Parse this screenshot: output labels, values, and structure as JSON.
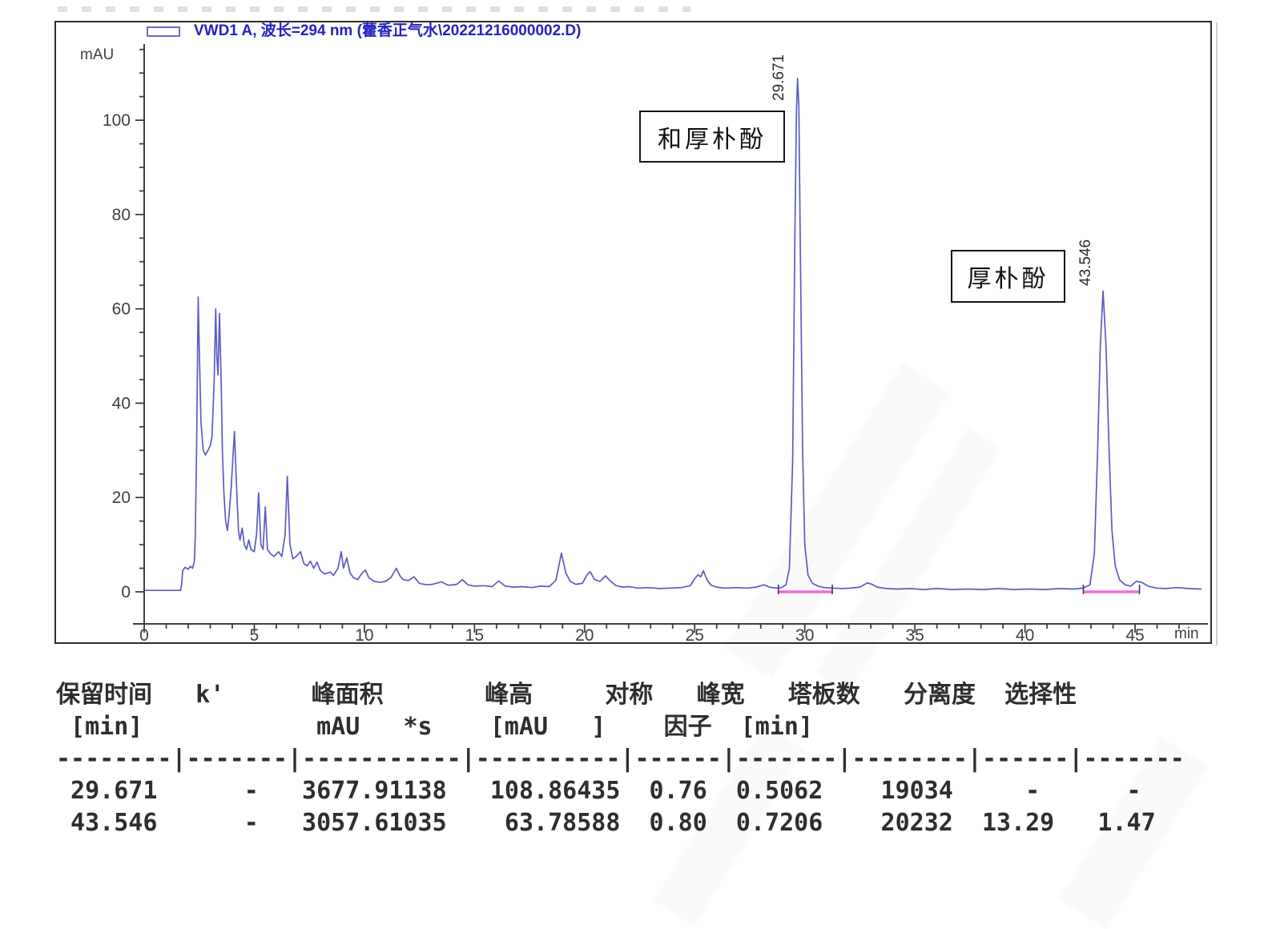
{
  "legend": {
    "label": "VWD1 A, 波长=294 nm (藿香正气水\\20221216000002.D)"
  },
  "annotations": {
    "peak1_rt": "29.671",
    "peak2_rt": "43.546",
    "peak1_box": "和厚朴酚",
    "peak2_box": "厚朴酚"
  },
  "chart_data": {
    "type": "line",
    "title": "VWD1 A, 波长=294 nm (藿香正气水\\20221216000002.D)",
    "xlabel": "min",
    "ylabel": "mAU",
    "xlim": [
      0,
      48.2
    ],
    "ylim": [
      -2,
      116
    ],
    "grid": false,
    "legend_position": "top-left",
    "x_ticks": [
      0,
      5,
      10,
      15,
      20,
      25,
      30,
      35,
      40,
      45
    ],
    "x_minor_step": 1,
    "y_ticks": [
      0,
      20,
      40,
      60,
      80,
      100
    ],
    "y_minor_step": 5,
    "integration_color": "#ec6fd8",
    "integration_regions": [
      {
        "start": 28.8,
        "end": 31.25
      },
      {
        "start": 42.65,
        "end": 45.2
      }
    ],
    "peaks": [
      {
        "rt": 29.671,
        "compound": "和厚朴酚",
        "k": "-",
        "area_mau_s": 3677.91138,
        "height_mau": 108.86435,
        "symmetry": 0.76,
        "width_min": 0.5062,
        "plates": 19034,
        "resolution": "-",
        "selectivity": "-"
      },
      {
        "rt": 43.546,
        "compound": "厚朴酚",
        "k": "-",
        "area_mau_s": 3057.61035,
        "height_mau": 63.78588,
        "symmetry": 0.8,
        "width_min": 0.7206,
        "plates": 20232,
        "resolution": 13.29,
        "selectivity": 1.47
      }
    ],
    "series": [
      {
        "name": "VWD1 A",
        "color": "#5b5bc4",
        "points": [
          [
            0,
            0.3
          ],
          [
            1.65,
            0.3
          ],
          [
            1.7,
            1.5
          ],
          [
            1.75,
            4.5
          ],
          [
            1.85,
            5.2
          ],
          [
            2.0,
            4.8
          ],
          [
            2.1,
            5.4
          ],
          [
            2.2,
            5.0
          ],
          [
            2.28,
            6.5
          ],
          [
            2.32,
            12
          ],
          [
            2.38,
            30
          ],
          [
            2.45,
            62.5
          ],
          [
            2.5,
            52
          ],
          [
            2.58,
            36
          ],
          [
            2.68,
            30
          ],
          [
            2.78,
            29
          ],
          [
            2.9,
            30
          ],
          [
            3.0,
            31
          ],
          [
            3.08,
            33
          ],
          [
            3.18,
            45
          ],
          [
            3.25,
            60
          ],
          [
            3.3,
            50
          ],
          [
            3.35,
            46
          ],
          [
            3.42,
            59
          ],
          [
            3.5,
            44
          ],
          [
            3.55,
            30
          ],
          [
            3.62,
            21
          ],
          [
            3.7,
            15
          ],
          [
            3.78,
            13
          ],
          [
            3.85,
            16
          ],
          [
            3.95,
            22
          ],
          [
            4.05,
            30
          ],
          [
            4.1,
            34
          ],
          [
            4.18,
            24
          ],
          [
            4.28,
            13
          ],
          [
            4.35,
            11
          ],
          [
            4.45,
            13.5
          ],
          [
            4.55,
            10
          ],
          [
            4.65,
            9
          ],
          [
            4.75,
            11
          ],
          [
            4.85,
            9
          ],
          [
            5.0,
            8.5
          ],
          [
            5.1,
            12
          ],
          [
            5.2,
            21
          ],
          [
            5.3,
            10
          ],
          [
            5.4,
            9
          ],
          [
            5.5,
            18
          ],
          [
            5.6,
            9
          ],
          [
            5.75,
            8
          ],
          [
            5.9,
            7.5
          ],
          [
            6.1,
            8.5
          ],
          [
            6.25,
            7.5
          ],
          [
            6.4,
            12
          ],
          [
            6.5,
            24.5
          ],
          [
            6.62,
            10
          ],
          [
            6.75,
            7
          ],
          [
            6.9,
            7.5
          ],
          [
            7.1,
            8.5
          ],
          [
            7.25,
            6
          ],
          [
            7.4,
            5.5
          ],
          [
            7.55,
            6.5
          ],
          [
            7.7,
            5
          ],
          [
            7.85,
            6.3
          ],
          [
            8.0,
            4.5
          ],
          [
            8.2,
            3.8
          ],
          [
            8.45,
            4.2
          ],
          [
            8.6,
            3.5
          ],
          [
            8.8,
            5
          ],
          [
            8.95,
            8.5
          ],
          [
            9.05,
            5
          ],
          [
            9.2,
            7.2
          ],
          [
            9.35,
            4
          ],
          [
            9.5,
            3
          ],
          [
            9.7,
            2.6
          ],
          [
            9.9,
            4
          ],
          [
            10.05,
            4.6
          ],
          [
            10.2,
            3
          ],
          [
            10.45,
            2.2
          ],
          [
            10.7,
            2
          ],
          [
            10.95,
            2.2
          ],
          [
            11.2,
            3
          ],
          [
            11.45,
            5
          ],
          [
            11.6,
            3.5
          ],
          [
            11.75,
            2.6
          ],
          [
            12.0,
            2.4
          ],
          [
            12.25,
            3.2
          ],
          [
            12.5,
            1.8
          ],
          [
            12.8,
            1.5
          ],
          [
            13.1,
            1.6
          ],
          [
            13.5,
            2.1
          ],
          [
            13.8,
            1.4
          ],
          [
            14.2,
            1.6
          ],
          [
            14.45,
            2.6
          ],
          [
            14.7,
            1.5
          ],
          [
            15.0,
            1.2
          ],
          [
            15.4,
            1.3
          ],
          [
            15.8,
            1.1
          ],
          [
            16.1,
            2.3
          ],
          [
            16.4,
            1.2
          ],
          [
            16.8,
            1.0
          ],
          [
            17.2,
            1.1
          ],
          [
            17.6,
            0.9
          ],
          [
            18.0,
            1.2
          ],
          [
            18.4,
            1.1
          ],
          [
            18.7,
            2.5
          ],
          [
            18.95,
            8.2
          ],
          [
            19.15,
            4
          ],
          [
            19.35,
            2.2
          ],
          [
            19.6,
            1.6
          ],
          [
            19.9,
            1.8
          ],
          [
            20.1,
            3.5
          ],
          [
            20.25,
            4.3
          ],
          [
            20.45,
            2.6
          ],
          [
            20.7,
            2.2
          ],
          [
            20.95,
            3.4
          ],
          [
            21.15,
            2.4
          ],
          [
            21.4,
            1.4
          ],
          [
            21.7,
            1.0
          ],
          [
            22.0,
            1.1
          ],
          [
            22.4,
            0.8
          ],
          [
            22.9,
            0.9
          ],
          [
            23.4,
            0.7
          ],
          [
            23.9,
            0.8
          ],
          [
            24.4,
            0.9
          ],
          [
            24.8,
            1.3
          ],
          [
            25.0,
            2.8
          ],
          [
            25.15,
            3.6
          ],
          [
            25.28,
            3.2
          ],
          [
            25.4,
            4.5
          ],
          [
            25.55,
            2.6
          ],
          [
            25.75,
            1.4
          ],
          [
            26.0,
            1.0
          ],
          [
            26.4,
            0.8
          ],
          [
            26.9,
            0.9
          ],
          [
            27.4,
            0.8
          ],
          [
            27.8,
            1.0
          ],
          [
            28.15,
            1.5
          ],
          [
            28.4,
            1.0
          ],
          [
            28.7,
            0.8
          ],
          [
            28.95,
            0.9
          ],
          [
            29.15,
            1.5
          ],
          [
            29.3,
            5
          ],
          [
            29.45,
            28
          ],
          [
            29.55,
            75
          ],
          [
            29.62,
            102
          ],
          [
            29.671,
            108.86
          ],
          [
            29.73,
            103
          ],
          [
            29.8,
            72
          ],
          [
            29.9,
            30
          ],
          [
            30.0,
            10
          ],
          [
            30.15,
            3.5
          ],
          [
            30.35,
            1.8
          ],
          [
            30.6,
            1.2
          ],
          [
            30.9,
            0.9
          ],
          [
            31.25,
            0.8
          ],
          [
            31.7,
            0.7
          ],
          [
            32.1,
            0.8
          ],
          [
            32.5,
            1.0
          ],
          [
            32.85,
            1.9
          ],
          [
            33.05,
            1.6
          ],
          [
            33.3,
            1.0
          ],
          [
            33.7,
            0.7
          ],
          [
            34.2,
            0.6
          ],
          [
            34.8,
            0.7
          ],
          [
            35.4,
            0.5
          ],
          [
            36.0,
            0.7
          ],
          [
            36.7,
            0.5
          ],
          [
            37.4,
            0.6
          ],
          [
            38.1,
            0.5
          ],
          [
            38.8,
            0.7
          ],
          [
            39.5,
            0.5
          ],
          [
            40.2,
            0.6
          ],
          [
            40.9,
            0.5
          ],
          [
            41.6,
            0.7
          ],
          [
            42.2,
            0.6
          ],
          [
            42.65,
            0.8
          ],
          [
            42.95,
            1.5
          ],
          [
            43.15,
            8
          ],
          [
            43.3,
            30
          ],
          [
            43.42,
            52
          ],
          [
            43.546,
            63.79
          ],
          [
            43.68,
            52
          ],
          [
            43.82,
            30
          ],
          [
            43.95,
            13
          ],
          [
            44.1,
            5.5
          ],
          [
            44.3,
            2.5
          ],
          [
            44.55,
            1.5
          ],
          [
            44.8,
            1.2
          ],
          [
            45.05,
            2.2
          ],
          [
            45.3,
            2.0
          ],
          [
            45.6,
            1.2
          ],
          [
            45.95,
            0.8
          ],
          [
            46.4,
            0.7
          ],
          [
            46.9,
            0.9
          ],
          [
            47.4,
            0.7
          ],
          [
            48.0,
            0.6
          ]
        ]
      }
    ]
  },
  "table": {
    "headers": [
      "保留时间 [min]",
      "k'",
      "峰面积 mAU *s",
      "峰高 [mAU]",
      "对称因子",
      "峰宽 [min]",
      "塔板数",
      "分离度",
      "选择性"
    ],
    "rows": [
      [
        "29.671",
        "-",
        "3677.91138",
        "108.86435",
        "0.76",
        "0.5062",
        "19034",
        "-",
        "-"
      ],
      [
        "43.546",
        "-",
        "3057.61035",
        "63.78588",
        "0.80",
        "0.7206",
        "20232",
        "13.29",
        "1.47"
      ]
    ],
    "lines": [
      "保留时间   k'      峰面积       峰高     对称   峰宽   塔板数   分离度  选择性",
      " [min]            mAU   *s    [mAU   ]    因子  [min]",
      "--------|-------|-----------|----------|------|-------|--------|------|-------",
      " 29.671      -   3677.91138   108.86435  0.76  0.5062    19034     -      -",
      " 43.546      -   3057.61035    63.78588  0.80  0.7206    20232  13.29   1.47"
    ]
  }
}
